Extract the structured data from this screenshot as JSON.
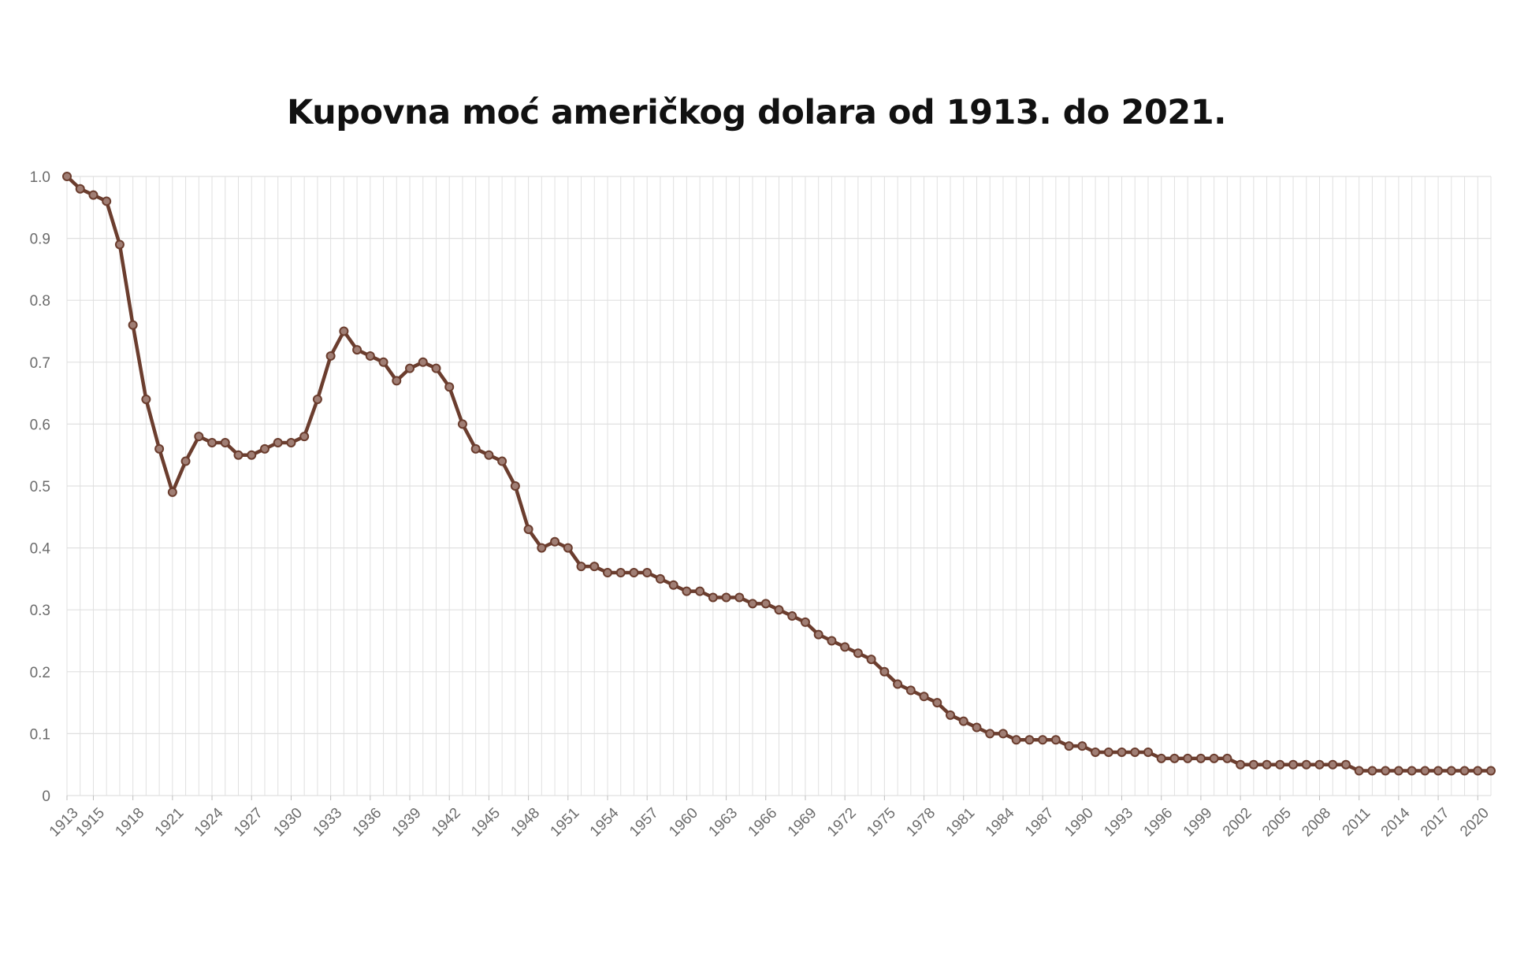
{
  "chart_data": {
    "type": "line",
    "title": "Kupovna moć američkog dolara  od 1913. do 2021.",
    "xlabel": "",
    "ylabel": "",
    "ylim": [
      0,
      1.0
    ],
    "xlim": [
      1913,
      2021
    ],
    "grid": true,
    "y_ticks": [
      "0",
      "0.1",
      "0.2",
      "0.3",
      "0.4",
      "0.5",
      "0.6",
      "0.7",
      "0.8",
      "0.9",
      "1.0"
    ],
    "x_tick_labels": [
      "1913",
      "1915",
      "1918",
      "1921",
      "1924",
      "1927",
      "1930",
      "1933",
      "1936",
      "1939",
      "1942",
      "1945",
      "1948",
      "1951",
      "1954",
      "1957",
      "1960",
      "1963",
      "1966",
      "1969",
      "1972",
      "1975",
      "1978",
      "1981",
      "1984",
      "1987",
      "1990",
      "1993",
      "1996",
      "1999",
      "2002",
      "2005",
      "2008",
      "2011",
      "2014",
      "2017",
      "2020"
    ],
    "line_color": "#6b3d2e",
    "marker_fill": "#a07e74",
    "grid_color": "#e0e0e0",
    "x": [
      1913,
      1914,
      1915,
      1916,
      1917,
      1918,
      1919,
      1920,
      1921,
      1922,
      1923,
      1924,
      1925,
      1926,
      1927,
      1928,
      1929,
      1930,
      1931,
      1932,
      1933,
      1934,
      1935,
      1936,
      1937,
      1938,
      1939,
      1940,
      1941,
      1942,
      1943,
      1944,
      1945,
      1946,
      1947,
      1948,
      1949,
      1950,
      1951,
      1952,
      1953,
      1954,
      1955,
      1956,
      1957,
      1958,
      1959,
      1960,
      1961,
      1962,
      1963,
      1964,
      1965,
      1966,
      1967,
      1968,
      1969,
      1970,
      1971,
      1972,
      1973,
      1974,
      1975,
      1976,
      1977,
      1978,
      1979,
      1980,
      1981,
      1982,
      1983,
      1984,
      1985,
      1986,
      1987,
      1988,
      1989,
      1990,
      1991,
      1992,
      1993,
      1994,
      1995,
      1996,
      1997,
      1998,
      1999,
      2000,
      2001,
      2002,
      2003,
      2004,
      2005,
      2006,
      2007,
      2008,
      2009,
      2010,
      2011,
      2012,
      2013,
      2014,
      2015,
      2016,
      2017,
      2018,
      2019,
      2020,
      2021
    ],
    "values": [
      1.0,
      0.98,
      0.97,
      0.96,
      0.89,
      0.76,
      0.64,
      0.56,
      0.49,
      0.54,
      0.58,
      0.57,
      0.57,
      0.55,
      0.55,
      0.56,
      0.57,
      0.57,
      0.58,
      0.64,
      0.71,
      0.75,
      0.72,
      0.71,
      0.7,
      0.67,
      0.69,
      0.7,
      0.69,
      0.66,
      0.6,
      0.56,
      0.55,
      0.54,
      0.5,
      0.43,
      0.4,
      0.41,
      0.4,
      0.37,
      0.37,
      0.36,
      0.36,
      0.36,
      0.36,
      0.35,
      0.34,
      0.33,
      0.33,
      0.32,
      0.32,
      0.32,
      0.31,
      0.31,
      0.3,
      0.29,
      0.28,
      0.26,
      0.25,
      0.24,
      0.23,
      0.22,
      0.2,
      0.18,
      0.17,
      0.16,
      0.15,
      0.13,
      0.12,
      0.11,
      0.1,
      0.1,
      0.09,
      0.09,
      0.09,
      0.09,
      0.08,
      0.08,
      0.07,
      0.07,
      0.07,
      0.07,
      0.07,
      0.06,
      0.06,
      0.06,
      0.06,
      0.06,
      0.06,
      0.05,
      0.05,
      0.05,
      0.05,
      0.05,
      0.05,
      0.05,
      0.05,
      0.05,
      0.04,
      0.04,
      0.04,
      0.04,
      0.04,
      0.04,
      0.04,
      0.04,
      0.04,
      0.04,
      0.04
    ]
  }
}
